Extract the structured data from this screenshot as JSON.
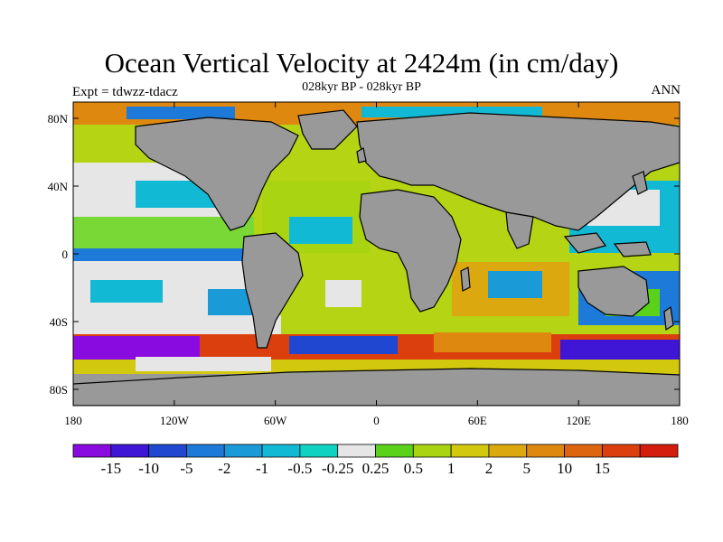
{
  "title": "Ocean Vertical Velocity at 2424m (in cm/day)",
  "subtitle": "028kyr BP - 028kyr BP",
  "experiment": "Expt = tdwzz-tdacz",
  "season": "ANN",
  "map": {
    "lat_ticks": [
      "80N",
      "40N",
      "0",
      "40S",
      "80S"
    ],
    "lon_ticks": [
      "180",
      "120W",
      "60W",
      "0",
      "60E",
      "120E",
      "180"
    ],
    "land_color": "#999999",
    "ocean_neutral_color": "#e6e6e6"
  },
  "colorbar": {
    "colors": [
      "#8a0be0",
      "#3f16d6",
      "#1f47d0",
      "#1e7ad8",
      "#1b9ad8",
      "#12b9d4",
      "#10d2c0",
      "#e6e6e6",
      "#5ad21a",
      "#a9d411",
      "#d2c90e",
      "#dca80f",
      "#de8810",
      "#dd6510",
      "#dc3f0e",
      "#d41d0c"
    ],
    "labels": [
      "-15",
      "-10",
      "-5",
      "-2",
      "-1",
      "-0.5",
      "-0.25",
      "0.25",
      "0.5",
      "1",
      "2",
      "5",
      "10",
      "15"
    ]
  }
}
